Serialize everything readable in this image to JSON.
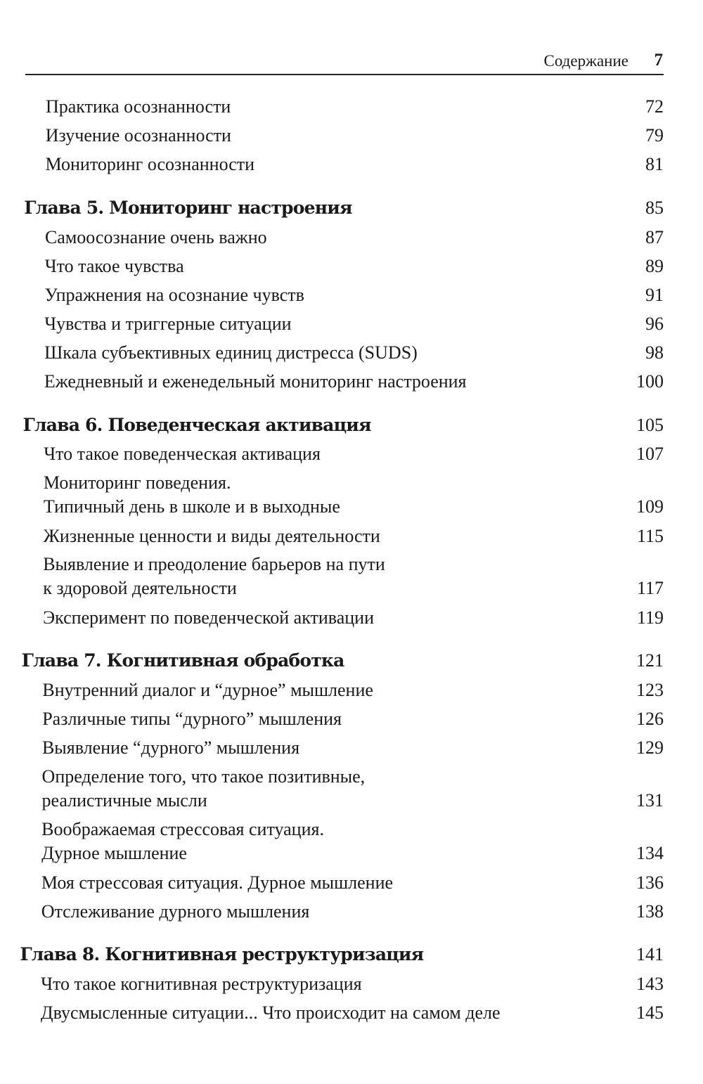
{
  "header": {
    "section_title": "Содержание",
    "page_number": "7"
  },
  "entries": [
    {
      "type": "section",
      "title": "Практика осознанности",
      "page": "72"
    },
    {
      "type": "section",
      "title": "Изучение осознанности",
      "page": "79"
    },
    {
      "type": "section",
      "title": "Мониторинг осознанности",
      "page": "81"
    },
    {
      "type": "chapter",
      "title": "Глава 5. Мониторинг настроения",
      "page": "85"
    },
    {
      "type": "section",
      "title": "Самоосознание очень важно",
      "page": "87"
    },
    {
      "type": "section",
      "title": "Что такое чувства",
      "page": "89"
    },
    {
      "type": "section",
      "title": "Упражнения на осознание чувств",
      "page": "91"
    },
    {
      "type": "section",
      "title": "Чувства и триггерные ситуации",
      "page": "96"
    },
    {
      "type": "section",
      "title": "Шкала субъективных единиц дистресса (SUDS)",
      "page": "98"
    },
    {
      "type": "section",
      "title": "Ежедневный и еженедельный мониторинг настроения",
      "page": "100"
    },
    {
      "type": "chapter",
      "title": "Глава 6. Поведенческая активация",
      "page": "105"
    },
    {
      "type": "section",
      "title": "Что такое поведенческая активация",
      "page": "107"
    },
    {
      "type": "section",
      "title": "Мониторинг поведения.\nТипичный день в школе и в выходные",
      "page": "109"
    },
    {
      "type": "section",
      "title": "Жизненные ценности и виды деятельности",
      "page": "115"
    },
    {
      "type": "section",
      "title": "Выявление и преодоление барьеров на пути\nк здоровой деятельности",
      "page": "117"
    },
    {
      "type": "section",
      "title": "Эксперимент по поведенческой активации",
      "page": "119"
    },
    {
      "type": "chapter",
      "title": "Глава 7. Когнитивная обработка",
      "page": "121"
    },
    {
      "type": "section",
      "title": "Внутренний диалог и “дурное” мышление",
      "page": "123"
    },
    {
      "type": "section",
      "title": "Различные типы “дурного” мышления",
      "page": "126"
    },
    {
      "type": "section",
      "title": "Выявление “дурного” мышления",
      "page": "129"
    },
    {
      "type": "section",
      "title": "Определение того, что такое позитивные,\nреалистичные мысли",
      "page": "131"
    },
    {
      "type": "section",
      "title": "Воображаемая стрессовая ситуация.\nДурное мышление",
      "page": "134"
    },
    {
      "type": "section",
      "title": "Моя стрессовая ситуация. Дурное мышление",
      "page": "136"
    },
    {
      "type": "section",
      "title": "Отслеживание дурного мышления",
      "page": "138"
    },
    {
      "type": "chapter",
      "title": "Глава 8. Когнитивная реструктуризация",
      "page": "141"
    },
    {
      "type": "section",
      "title": "Что такое когнитивная реструктуризация",
      "page": "143"
    },
    {
      "type": "section",
      "title": "Двусмысленные ситуации... Что происходит на самом деле",
      "page": "145"
    }
  ]
}
